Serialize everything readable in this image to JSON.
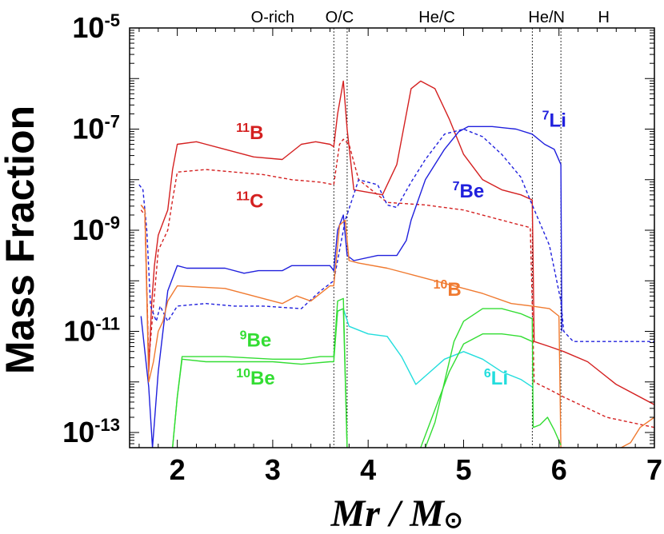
{
  "chart_data": {
    "type": "line",
    "xlabel": "Mr / M",
    "xlabel_symbol": "⊙",
    "ylabel": "Mass Fraction",
    "xlim": [
      1.5,
      7
    ],
    "ylim_log10": [
      -13.3,
      -5
    ],
    "y_scale": "log",
    "x_ticks": [
      "2",
      "3",
      "4",
      "5",
      "6",
      "7"
    ],
    "y_ticks": [
      {
        "base": "10",
        "exp": "-5"
      },
      {
        "base": "10",
        "exp": "-7"
      },
      {
        "base": "10",
        "exp": "-9"
      },
      {
        "base": "10",
        "exp": "-11"
      },
      {
        "base": "10",
        "exp": "-13"
      }
    ],
    "regions": [
      {
        "label": "O-rich",
        "x": 3.0
      },
      {
        "label": "O/C",
        "x": 3.7
      },
      {
        "label": "He/C",
        "x": 4.72
      },
      {
        "label": "He/N",
        "x": 5.87
      },
      {
        "label": "H",
        "x": 6.47
      }
    ],
    "boundaries": [
      3.64,
      3.78,
      5.72,
      6.02
    ],
    "series": [
      {
        "name": "11B",
        "mass": "11",
        "element": "B",
        "color": "#d42020",
        "dash": false,
        "points": [
          [
            1.62,
            -8.5
          ],
          [
            1.66,
            -8.6
          ],
          [
            1.7,
            -11.8
          ],
          [
            1.73,
            -10.5
          ],
          [
            1.76,
            -9.7
          ],
          [
            1.8,
            -9.1
          ],
          [
            1.86,
            -8.8
          ],
          [
            1.9,
            -8.6
          ],
          [
            1.95,
            -7.8
          ],
          [
            2.0,
            -7.3
          ],
          [
            2.2,
            -7.25
          ],
          [
            2.5,
            -7.4
          ],
          [
            2.8,
            -7.55
          ],
          [
            3.1,
            -7.6
          ],
          [
            3.3,
            -7.3
          ],
          [
            3.45,
            -7.25
          ],
          [
            3.6,
            -7.3
          ],
          [
            3.64,
            -7.35
          ],
          [
            3.68,
            -6.7
          ],
          [
            3.74,
            -6.05
          ],
          [
            3.78,
            -7.0
          ],
          [
            3.85,
            -8.2
          ],
          [
            4.0,
            -8.25
          ],
          [
            4.15,
            -8.3
          ],
          [
            4.3,
            -7.7
          ],
          [
            4.45,
            -6.2
          ],
          [
            4.55,
            -6.05
          ],
          [
            4.7,
            -6.2
          ],
          [
            4.85,
            -6.8
          ],
          [
            5.0,
            -7.5
          ],
          [
            5.2,
            -8.0
          ],
          [
            5.4,
            -8.2
          ],
          [
            5.6,
            -8.3
          ],
          [
            5.72,
            -8.4
          ],
          [
            5.74,
            -11.2
          ],
          [
            5.9,
            -11.3
          ],
          [
            6.05,
            -11.4
          ],
          [
            6.3,
            -11.6
          ],
          [
            6.6,
            -12.05
          ],
          [
            7.0,
            -12.45
          ]
        ]
      },
      {
        "name": "11C",
        "mass": "11",
        "element": "C",
        "color": "#d42020",
        "dash": true,
        "points": [
          [
            1.62,
            -8.6
          ],
          [
            1.66,
            -8.7
          ],
          [
            1.7,
            -11.6
          ],
          [
            1.75,
            -10.5
          ],
          [
            1.8,
            -9.4
          ],
          [
            1.9,
            -9.0
          ],
          [
            1.95,
            -8.4
          ],
          [
            2.0,
            -7.85
          ],
          [
            2.3,
            -7.8
          ],
          [
            2.6,
            -7.85
          ],
          [
            2.9,
            -7.9
          ],
          [
            3.2,
            -8.0
          ],
          [
            3.5,
            -8.05
          ],
          [
            3.64,
            -8.1
          ],
          [
            3.7,
            -7.3
          ],
          [
            3.74,
            -7.2
          ],
          [
            3.8,
            -7.3
          ],
          [
            3.9,
            -8.0
          ],
          [
            4.2,
            -8.45
          ],
          [
            4.6,
            -8.5
          ],
          [
            5.0,
            -8.6
          ],
          [
            5.4,
            -8.8
          ],
          [
            5.7,
            -8.95
          ],
          [
            5.74,
            -12.0
          ],
          [
            5.9,
            -12.15
          ],
          [
            6.05,
            -12.3
          ],
          [
            6.5,
            -12.7
          ],
          [
            7.0,
            -12.9
          ]
        ]
      },
      {
        "name": "7Be",
        "mass": "7",
        "element": "Be",
        "color": "#2020dd",
        "dash": true,
        "points": [
          [
            1.6,
            -8.1
          ],
          [
            1.64,
            -8.2
          ],
          [
            1.68,
            -9.0
          ],
          [
            1.72,
            -10.5
          ],
          [
            1.78,
            -10.8
          ],
          [
            1.82,
            -10.5
          ],
          [
            1.9,
            -10.8
          ],
          [
            2.0,
            -10.5
          ],
          [
            2.3,
            -10.45
          ],
          [
            2.6,
            -10.5
          ],
          [
            2.9,
            -10.5
          ],
          [
            3.3,
            -10.55
          ],
          [
            3.5,
            -10.2
          ],
          [
            3.64,
            -10.0
          ],
          [
            3.7,
            -9.4
          ],
          [
            3.76,
            -8.8
          ],
          [
            3.9,
            -8.0
          ],
          [
            4.1,
            -8.1
          ],
          [
            4.2,
            -8.5
          ],
          [
            4.3,
            -8.55
          ],
          [
            4.45,
            -8.05
          ],
          [
            4.6,
            -7.6
          ],
          [
            4.8,
            -7.1
          ],
          [
            5.0,
            -7.0
          ],
          [
            5.2,
            -7.15
          ],
          [
            5.4,
            -7.5
          ],
          [
            5.6,
            -7.95
          ],
          [
            5.72,
            -8.5
          ],
          [
            5.9,
            -9.3
          ],
          [
            6.02,
            -10.4
          ],
          [
            6.05,
            -11.0
          ],
          [
            6.15,
            -11.2
          ],
          [
            6.4,
            -11.2
          ],
          [
            7.0,
            -11.2
          ]
        ]
      },
      {
        "name": "7Li",
        "mass": "7",
        "element": "Li",
        "color": "#2020dd",
        "dash": false,
        "points": [
          [
            1.62,
            -10.7
          ],
          [
            1.7,
            -12.1
          ],
          [
            1.74,
            -13.3
          ],
          [
            1.8,
            -11.8
          ],
          [
            1.85,
            -11.0
          ],
          [
            1.9,
            -10.2
          ],
          [
            2.0,
            -9.7
          ],
          [
            2.1,
            -9.75
          ],
          [
            2.3,
            -9.75
          ],
          [
            2.5,
            -9.75
          ],
          [
            2.7,
            -9.85
          ],
          [
            2.85,
            -9.8
          ],
          [
            3.1,
            -9.8
          ],
          [
            3.2,
            -9.7
          ],
          [
            3.4,
            -9.7
          ],
          [
            3.6,
            -9.7
          ],
          [
            3.64,
            -9.8
          ],
          [
            3.68,
            -9.0
          ],
          [
            3.74,
            -8.7
          ],
          [
            3.78,
            -9.5
          ],
          [
            3.85,
            -9.6
          ],
          [
            4.1,
            -9.5
          ],
          [
            4.3,
            -9.5
          ],
          [
            4.4,
            -9.2
          ],
          [
            4.45,
            -8.8
          ],
          [
            4.6,
            -8.0
          ],
          [
            4.8,
            -7.4
          ],
          [
            4.95,
            -7.05
          ],
          [
            5.05,
            -6.95
          ],
          [
            5.3,
            -6.95
          ],
          [
            5.55,
            -7.0
          ],
          [
            5.72,
            -7.1
          ],
          [
            5.85,
            -7.3
          ],
          [
            5.95,
            -7.4
          ],
          [
            6.02,
            -7.7
          ],
          [
            6.03,
            -11.0
          ]
        ]
      },
      {
        "name": "10B",
        "mass": "10",
        "element": "B",
        "color": "#f07a30",
        "dash": false,
        "points": [
          [
            1.62,
            -8.5
          ],
          [
            1.66,
            -8.6
          ],
          [
            1.7,
            -12.0
          ],
          [
            1.75,
            -11.6
          ],
          [
            1.8,
            -11.0
          ],
          [
            1.85,
            -10.8
          ],
          [
            1.9,
            -10.4
          ],
          [
            2.0,
            -10.1
          ],
          [
            2.5,
            -10.15
          ],
          [
            2.9,
            -10.35
          ],
          [
            3.1,
            -10.45
          ],
          [
            3.25,
            -10.3
          ],
          [
            3.4,
            -10.4
          ],
          [
            3.6,
            -10.1
          ],
          [
            3.64,
            -10.1
          ],
          [
            3.7,
            -8.9
          ],
          [
            3.76,
            -8.8
          ],
          [
            3.8,
            -9.6
          ],
          [
            3.9,
            -9.65
          ],
          [
            4.2,
            -9.75
          ],
          [
            4.5,
            -9.9
          ],
          [
            4.8,
            -10.05
          ],
          [
            5.2,
            -10.25
          ],
          [
            5.5,
            -10.45
          ],
          [
            5.72,
            -10.5
          ],
          [
            5.9,
            -10.55
          ],
          [
            6.0,
            -10.7
          ],
          [
            6.02,
            -13.3
          ],
          [
            6.6,
            -13.35
          ],
          [
            6.75,
            -13.2
          ],
          [
            6.85,
            -12.9
          ],
          [
            7.0,
            -12.7
          ]
        ]
      },
      {
        "name": "6Li",
        "mass": "6",
        "element": "Li",
        "color": "#22dddd",
        "dash": false,
        "points": [
          [
            3.64,
            -11.5
          ],
          [
            3.68,
            -10.6
          ],
          [
            3.74,
            -10.55
          ],
          [
            3.8,
            -10.9
          ],
          [
            4.0,
            -11.05
          ],
          [
            4.2,
            -11.1
          ],
          [
            4.35,
            -11.5
          ],
          [
            4.5,
            -12.05
          ],
          [
            4.65,
            -11.8
          ],
          [
            4.8,
            -11.55
          ],
          [
            5.0,
            -11.4
          ],
          [
            5.2,
            -11.55
          ],
          [
            5.4,
            -11.8
          ],
          [
            5.6,
            -11.95
          ],
          [
            5.72,
            -12.1
          ]
        ]
      },
      {
        "name": "9Be",
        "mass": "9",
        "element": "Be",
        "color": "#33dd33",
        "dash": false,
        "points": [
          [
            1.95,
            -13.3
          ],
          [
            2.0,
            -12.3
          ],
          [
            2.05,
            -11.5
          ],
          [
            2.1,
            -11.5
          ],
          [
            2.5,
            -11.5
          ],
          [
            3.0,
            -11.55
          ],
          [
            3.3,
            -11.55
          ],
          [
            3.5,
            -11.5
          ],
          [
            3.64,
            -11.5
          ],
          [
            3.68,
            -10.4
          ],
          [
            3.74,
            -10.35
          ],
          [
            3.78,
            -13.3
          ]
        ]
      },
      {
        "name": "10Be",
        "mass": "10",
        "element": "Be",
        "color": "#33dd33",
        "dash": false,
        "points": [
          [
            1.95,
            -13.3
          ],
          [
            2.0,
            -12.3
          ],
          [
            2.05,
            -11.55
          ],
          [
            2.3,
            -11.6
          ],
          [
            2.7,
            -11.6
          ],
          [
            3.0,
            -11.6
          ],
          [
            3.3,
            -11.65
          ],
          [
            3.6,
            -11.6
          ],
          [
            3.64,
            -11.6
          ],
          [
            3.68,
            -10.6
          ],
          [
            3.74,
            -10.55
          ],
          [
            3.78,
            -13.3
          ]
        ]
      },
      {
        "name": "9Be_he",
        "mass": "",
        "element": "",
        "color": "#33dd33",
        "dash": false,
        "points": [
          [
            4.6,
            -13.3
          ],
          [
            4.7,
            -12.8
          ],
          [
            4.8,
            -12.0
          ],
          [
            4.9,
            -11.2
          ],
          [
            5.0,
            -10.8
          ],
          [
            5.2,
            -10.55
          ],
          [
            5.4,
            -10.55
          ],
          [
            5.6,
            -10.65
          ],
          [
            5.72,
            -10.75
          ],
          [
            5.73,
            -12.9
          ],
          [
            5.8,
            -12.85
          ],
          [
            5.88,
            -12.7
          ],
          [
            5.95,
            -12.95
          ],
          [
            6.02,
            -13.25
          ]
        ]
      },
      {
        "name": "10Be_he",
        "mass": "",
        "element": "",
        "color": "#33dd33",
        "dash": false,
        "points": [
          [
            4.55,
            -13.3
          ],
          [
            4.65,
            -12.8
          ],
          [
            4.75,
            -12.3
          ],
          [
            4.85,
            -11.8
          ],
          [
            5.0,
            -11.25
          ],
          [
            5.2,
            -11.05
          ],
          [
            5.4,
            -11.05
          ],
          [
            5.6,
            -11.1
          ],
          [
            5.72,
            -11.2
          ]
        ]
      }
    ],
    "labels": [
      {
        "series": "11B",
        "mass": "11",
        "element": "B",
        "x": 2.76,
        "y": -7.2,
        "color": "#d42020"
      },
      {
        "series": "11C",
        "mass": "11",
        "element": "C",
        "x": 2.76,
        "y": -8.55,
        "color": "#d42020"
      },
      {
        "series": "7Li",
        "mass": "7",
        "element": "Li",
        "x": 5.95,
        "y": -6.95,
        "color": "#2020dd"
      },
      {
        "series": "7Be",
        "mass": "7",
        "element": "Be",
        "x": 5.05,
        "y": -8.35,
        "color": "#2020dd"
      },
      {
        "series": "10B",
        "mass": "10",
        "element": "B",
        "x": 4.83,
        "y": -10.3,
        "color": "#f07a30"
      },
      {
        "series": "9Be",
        "mass": "9",
        "element": "Be",
        "x": 2.82,
        "y": -11.3,
        "color": "#33dd33"
      },
      {
        "series": "10Be",
        "mass": "10",
        "element": "Be",
        "x": 2.82,
        "y": -12.05,
        "color": "#33dd33"
      },
      {
        "series": "6Li",
        "mass": "6",
        "element": "Li",
        "x": 5.34,
        "y": -12.05,
        "color": "#22dddd"
      }
    ]
  }
}
